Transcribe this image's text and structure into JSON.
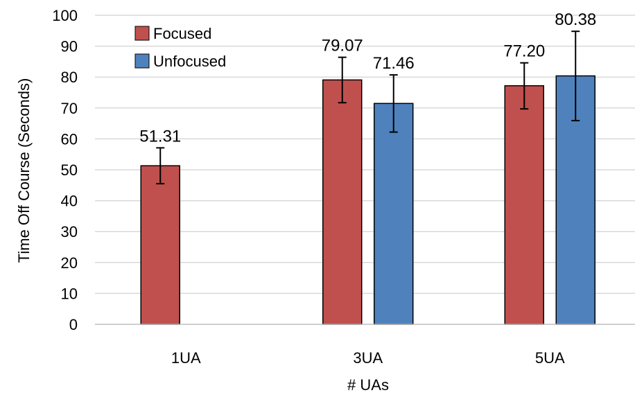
{
  "chart_data": {
    "type": "bar",
    "title": "",
    "xlabel": "# UAs",
    "ylabel": "Time Off Course (Seconds)",
    "ylim": [
      0,
      100
    ],
    "yticks": [
      0,
      10,
      20,
      30,
      40,
      50,
      60,
      70,
      80,
      90,
      100
    ],
    "grid": true,
    "legend_position": "top-left",
    "categories": [
      "1UA",
      "3UA",
      "5UA"
    ],
    "series": [
      {
        "name": "Focused",
        "color": "#c0504d",
        "values": [
          51.31,
          79.07,
          77.2
        ],
        "labels": [
          "51.31",
          "79.07",
          "77.20"
        ],
        "error_low": [
          45.5,
          71.7,
          69.7
        ],
        "error_high": [
          57.1,
          86.4,
          84.6
        ]
      },
      {
        "name": "Unfocused",
        "color": "#4f81bd",
        "values": [
          null,
          71.46,
          80.38
        ],
        "labels": [
          null,
          "71.46",
          "80.38"
        ],
        "error_low": [
          null,
          62.2,
          65.9
        ],
        "error_high": [
          null,
          80.7,
          94.8
        ]
      }
    ]
  }
}
